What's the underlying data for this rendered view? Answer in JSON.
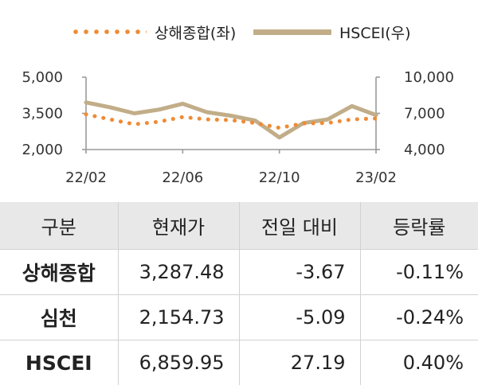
{
  "legend": {
    "left_series": "상해종합(좌)",
    "right_series": "HSCEI(우)"
  },
  "chart_data": {
    "type": "line",
    "x_ticks": [
      "22/02",
      "22/06",
      "22/10",
      "23/02"
    ],
    "x_range": [
      "2022-02",
      "2023-02"
    ],
    "left_axis": {
      "ticks": [
        "5,000",
        "3,500",
        "2,000"
      ],
      "range": [
        2000,
        5000
      ]
    },
    "right_axis": {
      "ticks": [
        "10,000",
        "7,000",
        "4,000"
      ],
      "range": [
        4000,
        10000
      ]
    },
    "grid": false,
    "series": [
      {
        "name": "상해종합(좌)",
        "axis": "left",
        "style": "dotted",
        "color": "#ef8b35",
        "x": [
          "2022-02",
          "2022-03",
          "2022-04",
          "2022-05",
          "2022-06",
          "2022-07",
          "2022-08",
          "2022-09",
          "2022-10",
          "2022-11",
          "2022-12",
          "2023-01",
          "2023-02"
        ],
        "values": [
          3460,
          3250,
          3050,
          3150,
          3350,
          3250,
          3220,
          3100,
          2900,
          3080,
          3100,
          3250,
          3290
        ]
      },
      {
        "name": "HSCEI(우)",
        "axis": "right",
        "style": "solid",
        "color": "#c1ad88",
        "x": [
          "2022-02",
          "2022-03",
          "2022-04",
          "2022-05",
          "2022-06",
          "2022-07",
          "2022-08",
          "2022-09",
          "2022-10",
          "2022-11",
          "2022-12",
          "2023-01",
          "2023-02"
        ],
        "values": [
          7900,
          7500,
          7000,
          7300,
          7800,
          7100,
          6800,
          6400,
          5000,
          6200,
          6500,
          7600,
          6860
        ]
      }
    ]
  },
  "table": {
    "headers": [
      "구분",
      "현재가",
      "전일 대비",
      "등락률"
    ],
    "rows": [
      {
        "name": "상해종합",
        "price": "3,287.48",
        "change": "-3.67",
        "rate": "-0.11%"
      },
      {
        "name": "심천",
        "price": "2,154.73",
        "change": "-5.09",
        "rate": "-0.24%"
      },
      {
        "name": "HSCEI",
        "price": "6,859.95",
        "change": "27.19",
        "rate": "0.40%"
      }
    ]
  }
}
